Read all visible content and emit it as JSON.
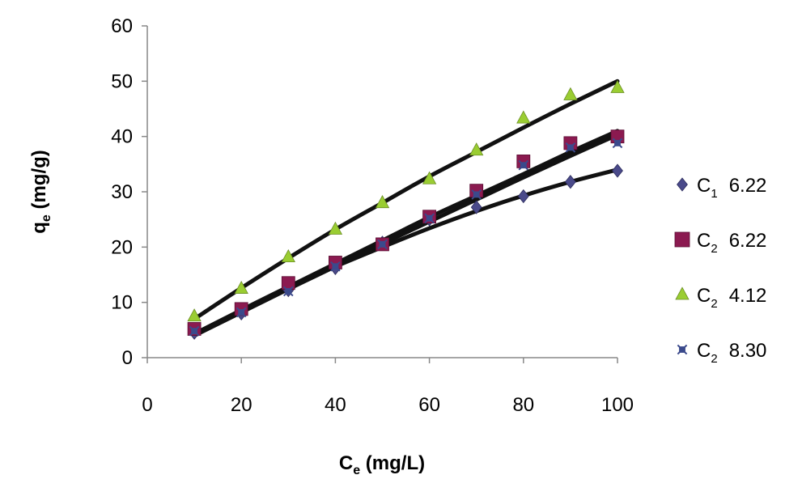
{
  "chart_data": {
    "type": "scatter",
    "title": "",
    "xlabel": {
      "main": "C",
      "sub": "e",
      "rest": " (mg/L)"
    },
    "ylabel": {
      "main": "q",
      "sub": "e",
      "rest": " (mg/g)"
    },
    "xlim": [
      0,
      100
    ],
    "ylim": [
      0,
      60
    ],
    "xticks": [
      0,
      20,
      40,
      60,
      80,
      100
    ],
    "yticks": [
      0,
      10,
      20,
      30,
      40,
      50,
      60
    ],
    "grid": false,
    "legend_position": "right",
    "x": [
      10,
      20,
      30,
      40,
      50,
      60,
      70,
      80,
      90,
      100
    ],
    "series": [
      {
        "legend_main": "C",
        "legend_sub": "1",
        "legend_value": "6.22",
        "marker": "diamond",
        "color": "#4a4a8a",
        "values": [
          4.5,
          8.0,
          12.2,
          16.2,
          20.8,
          25.0,
          27.2,
          29.2,
          31.8,
          33.8
        ],
        "fit": [
          4.3,
          8.6,
          12.8,
          16.5,
          20.0,
          23.4,
          26.5,
          29.3,
          31.8,
          34.0
        ]
      },
      {
        "legend_main": "C",
        "legend_sub": "2",
        "legend_value": "6.22",
        "marker": "square",
        "color": "#8b1a50",
        "values": [
          5.2,
          8.8,
          13.5,
          17.2,
          20.5,
          25.5,
          30.2,
          35.5,
          38.8,
          40.0
        ],
        "fit": [
          4.3,
          8.6,
          12.8,
          17.0,
          21.2,
          25.4,
          29.3,
          33.2,
          37.2,
          41.0
        ]
      },
      {
        "legend_main": "C",
        "legend_sub": "2",
        "legend_value": "4.12",
        "marker": "triangle",
        "color": "#9acd32",
        "values": [
          7.5,
          12.5,
          18.2,
          23.2,
          28.0,
          32.3,
          37.5,
          43.3,
          47.5,
          48.8
        ],
        "fit": [
          7.0,
          12.6,
          18.0,
          23.2,
          28.0,
          32.8,
          37.2,
          41.6,
          45.9,
          50.0
        ]
      },
      {
        "legend_main": "C",
        "legend_sub": "2",
        "legend_value": "8.30",
        "marker": "star",
        "color": "#3b4a8c",
        "values": [
          4.8,
          8.2,
          12.0,
          16.5,
          20.5,
          25.2,
          29.5,
          34.8,
          38.0,
          38.8
        ],
        "fit": [
          4.0,
          8.2,
          12.4,
          16.5,
          20.6,
          24.6,
          28.6,
          32.6,
          36.5,
          40.3
        ]
      }
    ]
  }
}
